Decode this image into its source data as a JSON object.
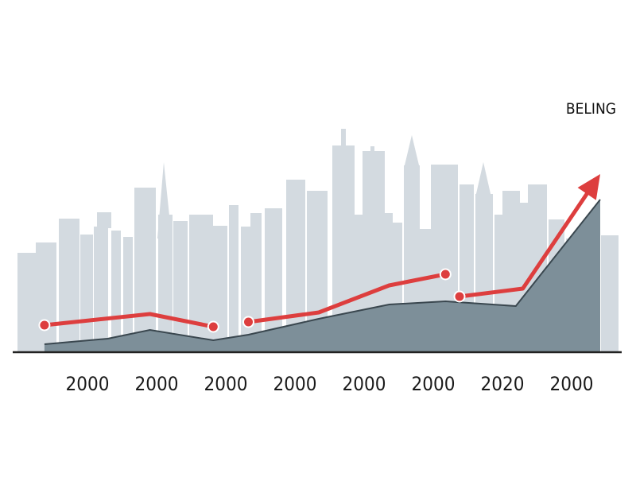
{
  "chart_data": {
    "type": "line",
    "categories": [
      "2000",
      "2000",
      "2000",
      "2000",
      "2000",
      "2000",
      "2020",
      "2000"
    ],
    "ylim": [
      0,
      100
    ],
    "grid": false,
    "legend": "none",
    "annotation": "BELING",
    "colors": {
      "line": "#dd3e3e",
      "area": "#7d8f99",
      "area_edge": "#3a474f",
      "skyline": "#d3dae0",
      "axis": "#222222"
    },
    "series": [
      {
        "kind": "line",
        "x": [
          0.1,
          1.6,
          2.5,
          3.0,
          4.0,
          5.0,
          5.8,
          6.0,
          6.9,
          8.0
        ],
        "values": [
          17,
          24,
          16,
          19,
          25,
          42,
          49,
          35,
          40,
          112
        ],
        "segments": [
          [
            0,
            2
          ],
          [
            3,
            6
          ],
          [
            7,
            9
          ]
        ],
        "ends_with_arrow": true
      },
      {
        "kind": "area",
        "x": [
          0.1,
          1.0,
          1.6,
          2.5,
          3.0,
          4.0,
          5.0,
          5.8,
          6.8,
          8.0
        ],
        "values": [
          5,
          8.5,
          14,
          7.5,
          11,
          21,
          30,
          32,
          29,
          96
        ]
      }
    ]
  }
}
